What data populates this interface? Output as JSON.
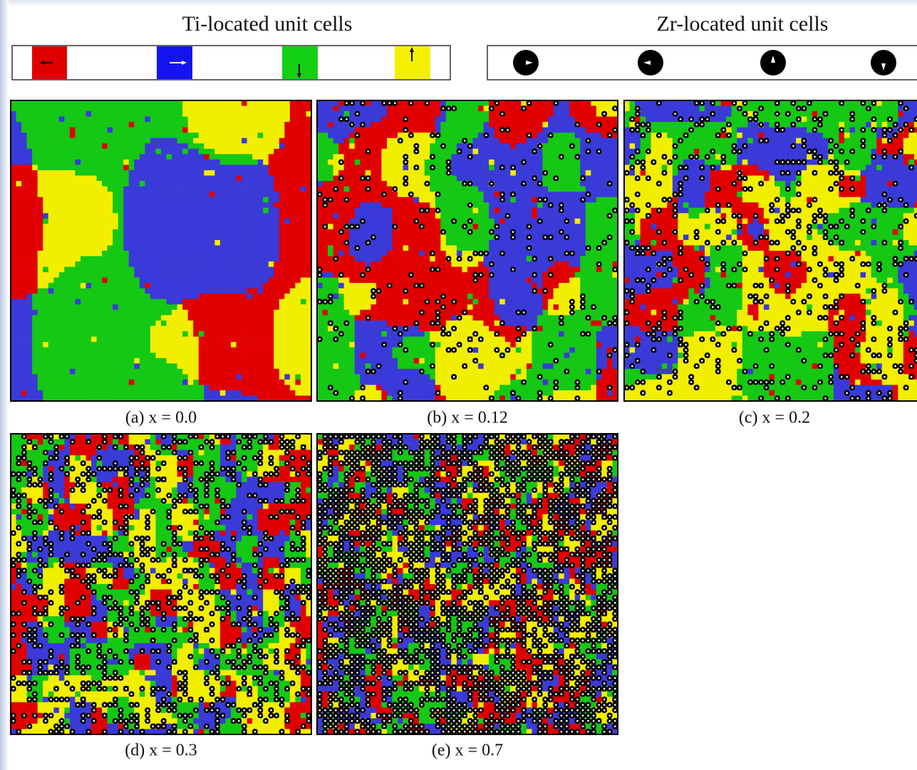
{
  "legend": {
    "ti_title": "Ti-located unit cells",
    "zr_title": "Zr-located unit cells"
  },
  "panels": [
    {
      "caption": "(a) x = 0.0"
    },
    {
      "caption": "(b) x = 0.12"
    },
    {
      "caption": "(c) x = 0.2"
    },
    {
      "caption": "(d) x = 0.3"
    },
    {
      "caption": "(e) x = 0.7"
    }
  ]
}
